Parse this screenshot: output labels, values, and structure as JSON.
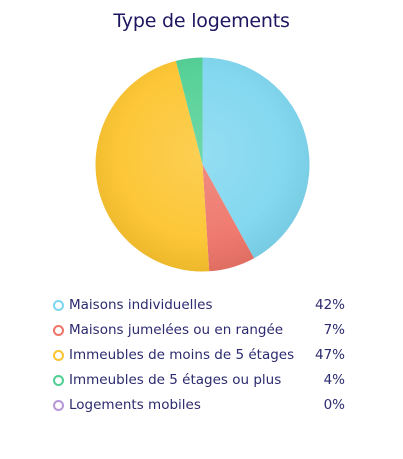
{
  "chart_data": {
    "type": "pie",
    "title": "Type de logements",
    "slices": [
      {
        "label": "Maisons individuelles",
        "value": 42,
        "value_label": "42%",
        "color": "#7dd6ef"
      },
      {
        "label": "Maisons jumelées ou en rangée",
        "value": 7,
        "value_label": "7%",
        "color": "#ee7468"
      },
      {
        "label": "Immeubles de moins de 5 étages",
        "value": 47,
        "value_label": "47%",
        "color": "#fcc42e"
      },
      {
        "label": "Immeubles de 5 étages ou plus",
        "value": 4,
        "value_label": "4%",
        "color": "#4fcf93"
      },
      {
        "label": "Logements mobiles",
        "value": 0,
        "value_label": "0%",
        "color": "#b596d6"
      }
    ],
    "legend_position": "bottom"
  }
}
